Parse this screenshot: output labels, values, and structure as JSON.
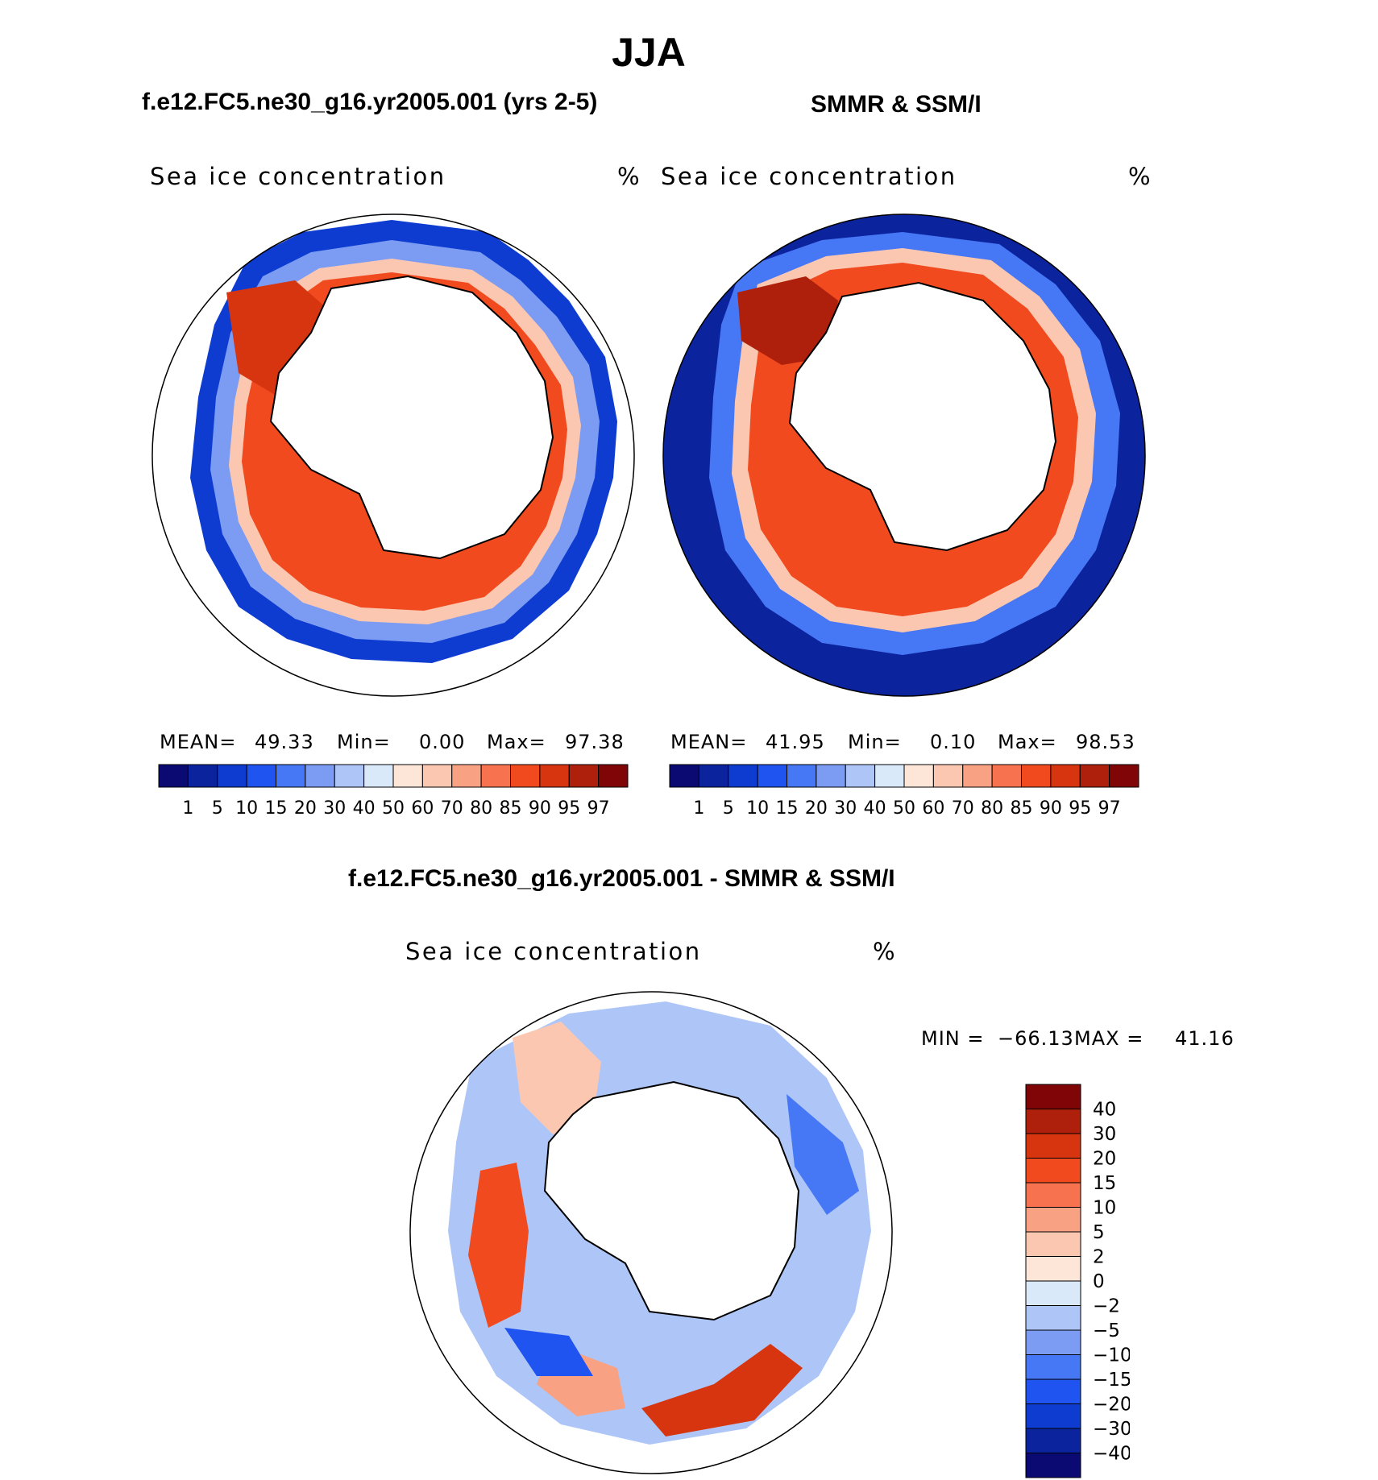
{
  "title": "JJA",
  "panels": [
    {
      "id": "model",
      "header": "f.e12.FC5.ne30_g16.yr2005.001 (yrs 2-5)",
      "variable": "Sea ice concentration",
      "units": "%",
      "stats": {
        "mean_label": "MEAN=",
        "mean": "49.33",
        "min_label": "Min=",
        "min": "0.00",
        "max_label": "Max=",
        "max": "97.38"
      }
    },
    {
      "id": "obs",
      "header": "SMMR & SSM/I",
      "variable": "Sea ice concentration",
      "units": "%",
      "stats": {
        "mean_label": "MEAN=",
        "mean": "41.95",
        "min_label": "Min=",
        "min": "0.10",
        "max_label": "Max=",
        "max": "98.53"
      }
    }
  ],
  "abs_colorbar": {
    "colors": [
      "#0a0a72",
      "#0c239e",
      "#0e3cd0",
      "#1f54f0",
      "#4677f5",
      "#7c9cf3",
      "#aec6f7",
      "#d9e9fa",
      "#fde6d8",
      "#fbc7b1",
      "#f9a183",
      "#f7724f",
      "#f04a1e",
      "#d73510",
      "#ae200c",
      "#7f0507"
    ],
    "ticks": [
      "1",
      "5",
      "10",
      "15",
      "20",
      "30",
      "40",
      "50",
      "60",
      "70",
      "80",
      "85",
      "90",
      "95",
      "97"
    ]
  },
  "difference": {
    "header": "f.e12.FC5.ne30_g16.yr2005.001 - SMMR & SSM/I",
    "variable": "Sea ice concentration",
    "units": "%",
    "min_label": "MIN =",
    "min": "−66.13",
    "max_label": "MAX =",
    "max": "41.16",
    "colorbar": {
      "colors_top_to_bottom": [
        "#7f0507",
        "#ae200c",
        "#d73510",
        "#f04a1e",
        "#f7724f",
        "#f9a183",
        "#fbc7b1",
        "#fde6d8",
        "#d9e9fa",
        "#aec6f7",
        "#7c9cf3",
        "#4677f5",
        "#1f54f0",
        "#0e3cd0",
        "#0c239e",
        "#0a0a72"
      ],
      "ticks_top_to_bottom": [
        "40",
        "30",
        "20",
        "15",
        "10",
        "5",
        "2",
        "0",
        "−2",
        "−5",
        "−10",
        "−15",
        "−20",
        "−30",
        "−40"
      ]
    }
  }
}
